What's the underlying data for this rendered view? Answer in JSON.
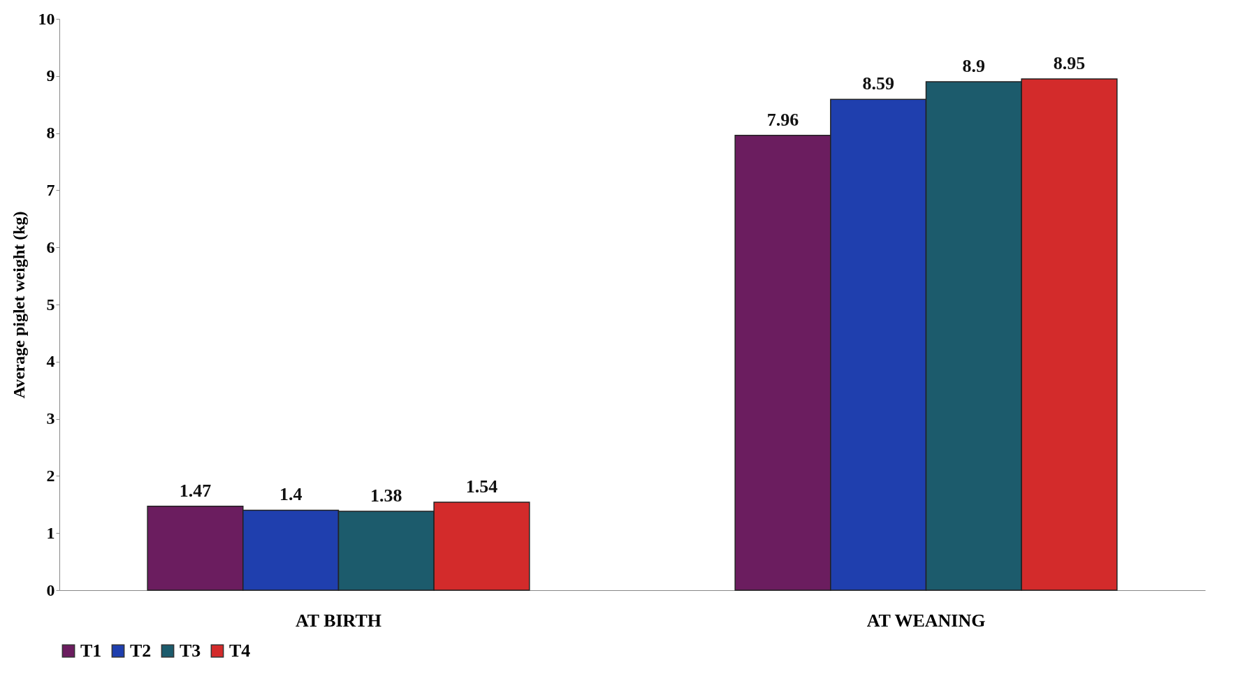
{
  "chart_data": {
    "type": "bar",
    "ylabel": "Average piglet weight (kg)",
    "categories": [
      "AT BIRTH",
      "AT WEANING"
    ],
    "series": [
      {
        "name": "T1",
        "color": "#6b1d5f",
        "values": [
          1.47,
          7.96
        ]
      },
      {
        "name": "T2",
        "color": "#1f3fae",
        "values": [
          1.4,
          8.59
        ]
      },
      {
        "name": "T3",
        "color": "#1c5b6c",
        "values": [
          1.38,
          8.9
        ]
      },
      {
        "name": "T4",
        "color": "#d32b2b",
        "values": [
          1.54,
          8.95
        ]
      }
    ],
    "ylim": [
      0,
      10
    ],
    "yticks": [
      0,
      1,
      2,
      3,
      4,
      5,
      6,
      7,
      8,
      9,
      10
    ],
    "grid": false,
    "legend": "bottom",
    "data_labels": true
  }
}
